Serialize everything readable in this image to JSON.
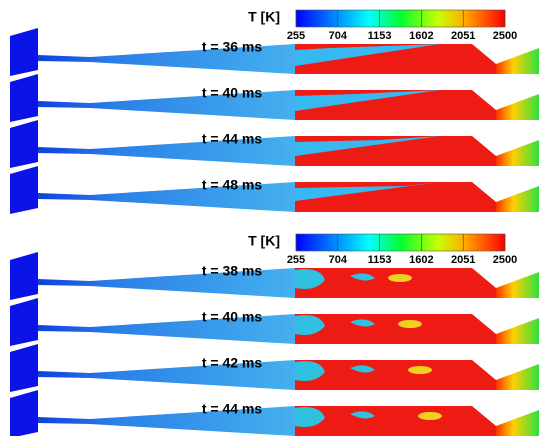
{
  "panels": [
    {
      "colorbar": {
        "title": "T [K]",
        "ticks": [
          255,
          704,
          1153,
          1602,
          2051,
          2500
        ]
      },
      "frames": [
        {
          "label": "t = 36 ms"
        },
        {
          "label": "t = 40 ms"
        },
        {
          "label": "t = 44 ms"
        },
        {
          "label": "t = 48 ms"
        }
      ]
    },
    {
      "colorbar": {
        "title": "T [K]",
        "ticks": [
          255,
          704,
          1153,
          1602,
          2051,
          2500
        ]
      },
      "frames": [
        {
          "label": "t = 38 ms"
        },
        {
          "label": "t = 40 ms"
        },
        {
          "label": "t = 42 ms"
        },
        {
          "label": "t = 44 ms"
        }
      ]
    }
  ]
}
